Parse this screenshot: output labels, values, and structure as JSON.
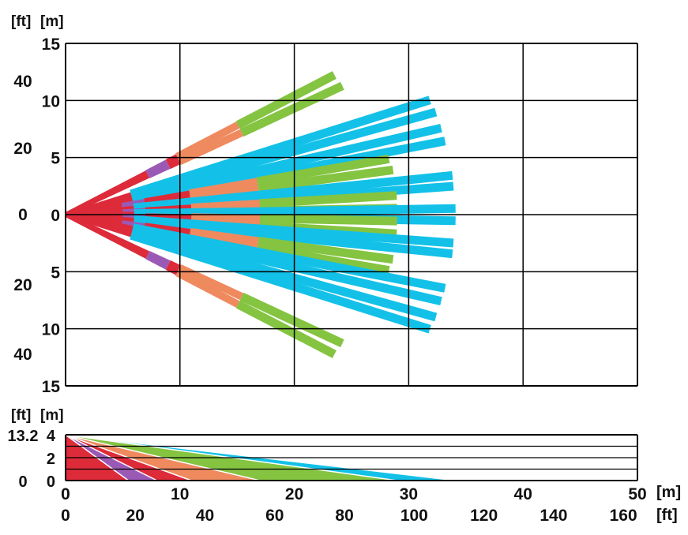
{
  "top_view": {
    "unit_labels": {
      "ft": "[ft]",
      "m": "[m]"
    },
    "y_ticks_m": [
      "15",
      "10",
      "5",
      "0",
      "5",
      "10",
      "15"
    ],
    "y_ticks_ft": [
      "40",
      "20",
      "0",
      "20",
      "40"
    ]
  },
  "side_view": {
    "unit_labels": {
      "ft": "[ft]",
      "m": "[m]"
    },
    "y_ticks_m": [
      "4",
      "2",
      "0"
    ],
    "y_ticks_ft": [
      "13.2",
      "0"
    ]
  },
  "x_axis": {
    "ticks_m": [
      "0",
      "10",
      "20",
      "30",
      "40",
      "50"
    ],
    "ticks_ft": [
      "0",
      "20",
      "40",
      "60",
      "80",
      "100",
      "120",
      "140",
      "160"
    ],
    "unit_m": "[m]",
    "unit_ft": "[ft]"
  },
  "colors": {
    "red": "#dd2b3a",
    "purple": "#9b59b6",
    "orange": "#ef8a5f",
    "green": "#84c441",
    "blue": "#13c1e8",
    "grid": "#000000"
  },
  "chart_data": {
    "type": "detection-pattern",
    "top_beams": [
      {
        "angle_deg": 27.5,
        "length_m": 26.5,
        "bands": [
          [
            "red",
            0,
            8
          ],
          [
            "purple",
            8,
            10
          ],
          [
            "red",
            10,
            11
          ],
          [
            "orange",
            11,
            17
          ],
          [
            "green",
            17,
            26.5
          ]
        ]
      },
      {
        "angle_deg": 25.0,
        "length_m": 26.7,
        "bands": [
          [
            "red",
            0,
            8
          ],
          [
            "purple",
            8,
            10
          ],
          [
            "red",
            10,
            11
          ],
          [
            "orange",
            11,
            17
          ],
          [
            "green",
            17,
            26.7
          ]
        ]
      },
      {
        "angle_deg": 17.5,
        "length_m": 33.4,
        "bands": [
          [
            "red",
            0,
            6
          ],
          [
            "blue",
            6,
            33.4
          ]
        ]
      },
      {
        "angle_deg": 15.5,
        "length_m": 33.6,
        "bands": [
          [
            "red",
            0,
            6
          ],
          [
            "blue",
            6,
            33.6
          ]
        ]
      },
      {
        "angle_deg": 13.0,
        "length_m": 33.7,
        "bands": [
          [
            "red",
            0,
            6
          ],
          [
            "blue",
            6,
            33.7
          ]
        ]
      },
      {
        "angle_deg": 11.0,
        "length_m": 33.8,
        "bands": [
          [
            "red",
            0,
            6
          ],
          [
            "blue",
            6,
            33.8
          ]
        ]
      },
      {
        "angle_deg": 9.8,
        "length_m": 28.7,
        "bands": [
          [
            "red",
            0,
            5
          ],
          [
            "purple",
            5,
            7
          ],
          [
            "red",
            7,
            11
          ],
          [
            "orange",
            11,
            17
          ],
          [
            "green",
            17,
            28.7
          ]
        ]
      },
      {
        "angle_deg": 7.8,
        "length_m": 28.9,
        "bands": [
          [
            "red",
            0,
            5
          ],
          [
            "purple",
            5,
            7
          ],
          [
            "red",
            7,
            11
          ],
          [
            "orange",
            11,
            17
          ],
          [
            "green",
            17,
            28.9
          ]
        ]
      },
      {
        "angle_deg": 5.8,
        "length_m": 34.0,
        "bands": [
          [
            "red",
            0,
            6
          ],
          [
            "blue",
            6,
            34.0
          ]
        ]
      },
      {
        "angle_deg": 4.2,
        "length_m": 34.0,
        "bands": [
          [
            "red",
            0,
            6
          ],
          [
            "blue",
            6,
            34.0
          ]
        ]
      },
      {
        "angle_deg": 3.3,
        "length_m": 29.0,
        "bands": [
          [
            "red",
            0,
            5
          ],
          [
            "purple",
            5,
            7
          ],
          [
            "red",
            7,
            11
          ],
          [
            "orange",
            11,
            17
          ],
          [
            "green",
            17,
            29.0
          ]
        ]
      },
      {
        "angle_deg": 1.1,
        "length_m": 29.0,
        "bands": [
          [
            "red",
            0,
            5
          ],
          [
            "purple",
            5,
            7
          ],
          [
            "red",
            7,
            11
          ],
          [
            "orange",
            11,
            17
          ],
          [
            "green",
            17,
            29.0
          ]
        ]
      },
      {
        "angle_deg": 0.9,
        "length_m": 34.1,
        "bands": [
          [
            "red",
            0,
            6
          ],
          [
            "blue",
            6,
            34.1
          ]
        ]
      },
      {
        "angle_deg": -0.9,
        "length_m": 34.1,
        "bands": [
          [
            "red",
            0,
            6
          ],
          [
            "blue",
            6,
            34.1
          ]
        ]
      },
      {
        "angle_deg": -1.1,
        "length_m": 29.0,
        "bands": [
          [
            "red",
            0,
            5
          ],
          [
            "purple",
            5,
            7
          ],
          [
            "red",
            7,
            11
          ],
          [
            "orange",
            11,
            17
          ],
          [
            "green",
            17,
            29.0
          ]
        ]
      },
      {
        "angle_deg": -3.3,
        "length_m": 29.0,
        "bands": [
          [
            "red",
            0,
            5
          ],
          [
            "purple",
            5,
            7
          ],
          [
            "red",
            7,
            11
          ],
          [
            "orange",
            11,
            17
          ],
          [
            "green",
            17,
            29.0
          ]
        ]
      },
      {
        "angle_deg": -4.2,
        "length_m": 34.0,
        "bands": [
          [
            "red",
            0,
            6
          ],
          [
            "blue",
            6,
            34.0
          ]
        ]
      },
      {
        "angle_deg": -5.8,
        "length_m": 34.0,
        "bands": [
          [
            "red",
            0,
            6
          ],
          [
            "blue",
            6,
            34.0
          ]
        ]
      },
      {
        "angle_deg": -7.8,
        "length_m": 28.9,
        "bands": [
          [
            "red",
            0,
            5
          ],
          [
            "purple",
            5,
            7
          ],
          [
            "red",
            7,
            11
          ],
          [
            "orange",
            11,
            17
          ],
          [
            "green",
            17,
            28.9
          ]
        ]
      },
      {
        "angle_deg": -9.8,
        "length_m": 28.7,
        "bands": [
          [
            "red",
            0,
            5
          ],
          [
            "purple",
            5,
            7
          ],
          [
            "red",
            7,
            11
          ],
          [
            "orange",
            11,
            17
          ],
          [
            "green",
            17,
            28.7
          ]
        ]
      },
      {
        "angle_deg": -11.0,
        "length_m": 33.8,
        "bands": [
          [
            "red",
            0,
            6
          ],
          [
            "blue",
            6,
            33.8
          ]
        ]
      },
      {
        "angle_deg": -13.0,
        "length_m": 33.7,
        "bands": [
          [
            "red",
            0,
            6
          ],
          [
            "blue",
            6,
            33.7
          ]
        ]
      },
      {
        "angle_deg": -15.5,
        "length_m": 33.6,
        "bands": [
          [
            "red",
            0,
            6
          ],
          [
            "blue",
            6,
            33.6
          ]
        ]
      },
      {
        "angle_deg": -17.5,
        "length_m": 33.4,
        "bands": [
          [
            "red",
            0,
            6
          ],
          [
            "blue",
            6,
            33.4
          ]
        ]
      },
      {
        "angle_deg": -25.0,
        "length_m": 26.7,
        "bands": [
          [
            "red",
            0,
            8
          ],
          [
            "purple",
            8,
            10
          ],
          [
            "red",
            10,
            11
          ],
          [
            "orange",
            11,
            17
          ],
          [
            "green",
            17,
            26.7
          ]
        ]
      },
      {
        "angle_deg": -27.5,
        "length_m": 26.5,
        "bands": [
          [
            "red",
            0,
            8
          ],
          [
            "purple",
            8,
            10
          ],
          [
            "red",
            10,
            11
          ],
          [
            "orange",
            11,
            17
          ],
          [
            "green",
            17,
            26.5
          ]
        ]
      }
    ],
    "side_zones": [
      {
        "color": "blue",
        "far_m": 34.1
      },
      {
        "color": "green",
        "far_m": 29.0
      },
      {
        "color": "orange",
        "far_m": 17.0
      },
      {
        "color": "red",
        "far_m": 11.0
      },
      {
        "color": "purple",
        "far_m": 8.0
      },
      {
        "color": "red",
        "far_m": 5.5
      }
    ],
    "top_y_range_m": [
      -15,
      15
    ],
    "side_y_range_m": [
      0,
      4
    ],
    "x_range_m": [
      0,
      50
    ]
  }
}
